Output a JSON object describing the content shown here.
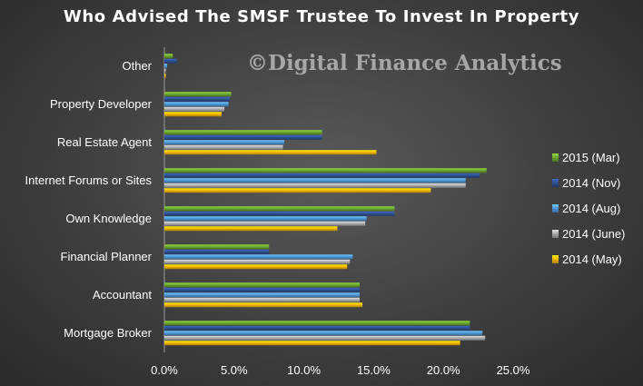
{
  "chart_data": {
    "type": "bar",
    "orientation": "horizontal",
    "title": "Who Advised The SMSF Trustee To Invest In Property",
    "watermark": "©Digital Finance Analytics",
    "categories": [
      "Other",
      "Property Developer",
      "Real Estate Agent",
      "Internet Forums or Sites",
      "Own Knowledge",
      "Financial Planner",
      "Accountant",
      "Mortgage Broker"
    ],
    "series": [
      {
        "name": "2015 (Mar)",
        "color": "#6aa32e",
        "values": [
          0.6,
          4.8,
          11.3,
          23.1,
          16.5,
          7.5,
          14.0,
          21.9
        ]
      },
      {
        "name": "2014 (Nov)",
        "color": "#2e4f8f",
        "values": [
          0.9,
          4.7,
          11.3,
          22.6,
          16.5,
          7.5,
          14.0,
          21.9
        ]
      },
      {
        "name": "2014 (Aug)",
        "color": "#4f95d4",
        "values": [
          0.2,
          4.6,
          8.6,
          21.6,
          14.5,
          13.5,
          14.0,
          22.8
        ]
      },
      {
        "name": "2014 (June)",
        "color": "#a8a8a8",
        "values": [
          0.1,
          4.3,
          8.5,
          21.6,
          14.4,
          13.3,
          14.0,
          23.0
        ]
      },
      {
        "name": "2014 (May)",
        "color": "#f0b400",
        "values": [
          0.1,
          4.1,
          15.2,
          19.1,
          12.4,
          13.1,
          14.2,
          21.2
        ]
      }
    ],
    "x_ticks": [
      "0.0%",
      "5.0%",
      "10.0%",
      "15.0%",
      "20.0%",
      "25.0%"
    ],
    "xlim": [
      0,
      25
    ],
    "unit": "%",
    "legend_position": "right",
    "grid": false
  }
}
